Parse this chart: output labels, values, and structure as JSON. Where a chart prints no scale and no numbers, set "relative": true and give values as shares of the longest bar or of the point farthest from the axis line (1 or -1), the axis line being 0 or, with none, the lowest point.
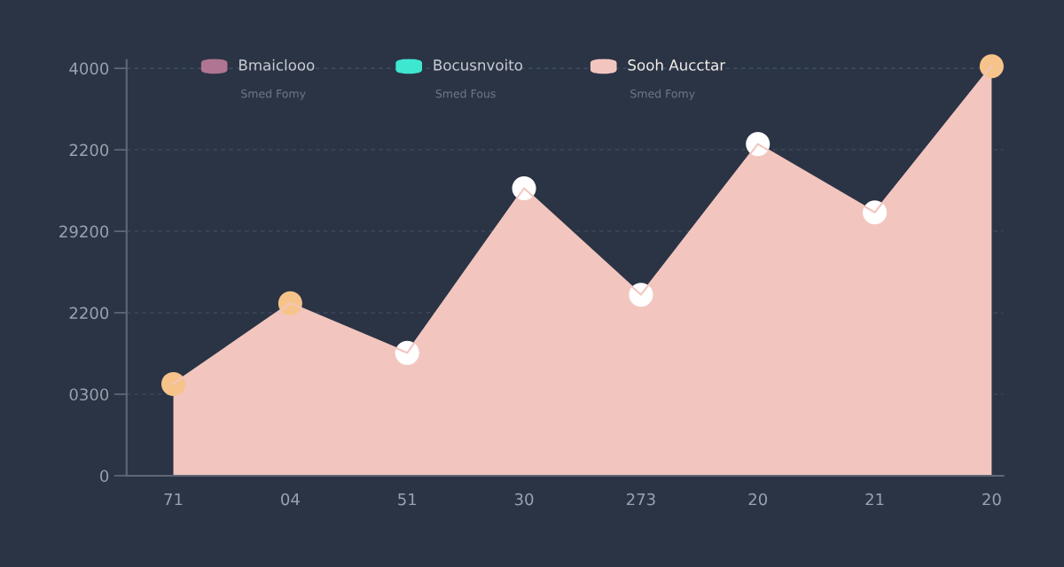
{
  "chart_data": {
    "type": "area",
    "categories": [
      "71",
      "04",
      "51",
      "30",
      "273",
      "20",
      "21",
      "20"
    ],
    "series": [
      {
        "name": "Bmaiclooo",
        "color": "#b07590",
        "values": [
          null,
          null,
          null,
          null,
          null,
          null,
          null,
          null
        ]
      },
      {
        "name": "Bocusnvoito",
        "color": "#3ee8d0",
        "values": [
          null,
          null,
          null,
          null,
          null,
          null,
          null,
          null
        ]
      },
      {
        "name": "Sooh Aucctar",
        "color": "#f2c6bf",
        "values": [
          0.224,
          0.421,
          0.3,
          0.702,
          0.442,
          0.81,
          0.643,
          1
        ]
      },
      {
        "type": "scatter",
        "marker": "circle",
        "color": "#f6c48a",
        "values": [
          0.224,
          0.421,
          null,
          null,
          null,
          null,
          null,
          1
        ]
      },
      {
        "type": "scatter",
        "marker": "circle",
        "color": "#ffffff",
        "values": [
          null,
          null,
          0.3,
          0.702,
          0.442,
          0.81,
          0.643,
          null
        ]
      }
    ],
    "annotations": [
      "Smed Fomy",
      "Smed Fous",
      "Smed Fomy",
      "0",
      "0300",
      "2200",
      "29200",
      "2200",
      "4000"
    ],
    "relative": true,
    "grid": "y",
    "legend": "top"
  }
}
